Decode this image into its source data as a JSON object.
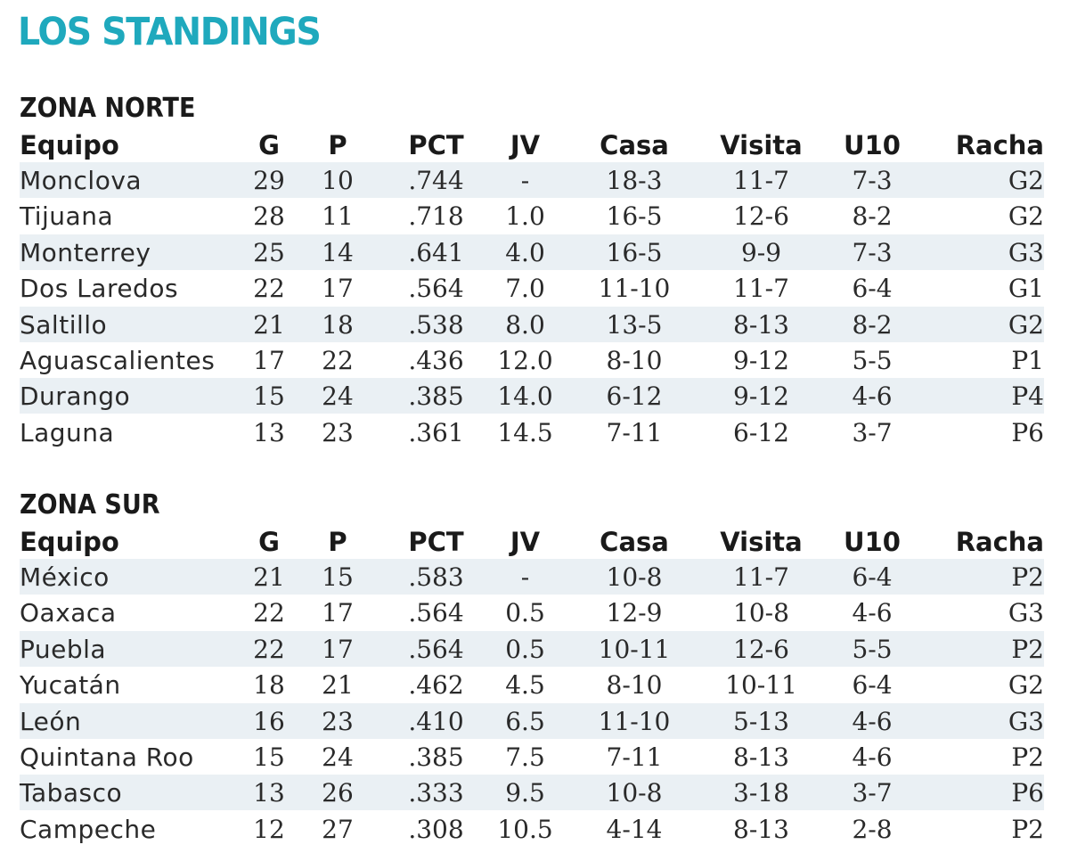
{
  "page_title": "LOS STANDINGS",
  "headers": {
    "team": "Equipo",
    "g": "G",
    "p": "P",
    "pct": "PCT",
    "jv": "JV",
    "casa": "Casa",
    "visita": "Visita",
    "u10": "U10",
    "racha": "Racha"
  },
  "norte": {
    "title": "ZONA NORTE",
    "rows": [
      {
        "team": "Monclova",
        "g": "29",
        "p": "10",
        "pct": ".744",
        "jv": "-",
        "casa": "18-3",
        "visita": "11-7",
        "u10": "7-3",
        "racha": "G2"
      },
      {
        "team": "Tijuana",
        "g": "28",
        "p": "11",
        "pct": ".718",
        "jv": "1.0",
        "casa": "16-5",
        "visita": "12-6",
        "u10": "8-2",
        "racha": "G2"
      },
      {
        "team": "Monterrey",
        "g": "25",
        "p": "14",
        "pct": ".641",
        "jv": "4.0",
        "casa": "16-5",
        "visita": "9-9",
        "u10": "7-3",
        "racha": "G3"
      },
      {
        "team": "Dos Laredos",
        "g": "22",
        "p": "17",
        "pct": ".564",
        "jv": "7.0",
        "casa": "11-10",
        "visita": "11-7",
        "u10": "6-4",
        "racha": "G1"
      },
      {
        "team": "Saltillo",
        "g": "21",
        "p": "18",
        "pct": ".538",
        "jv": "8.0",
        "casa": "13-5",
        "visita": "8-13",
        "u10": "8-2",
        "racha": "G2"
      },
      {
        "team": "Aguascalientes",
        "g": "17",
        "p": "22",
        "pct": ".436",
        "jv": "12.0",
        "casa": "8-10",
        "visita": "9-12",
        "u10": "5-5",
        "racha": "P1"
      },
      {
        "team": "Durango",
        "g": "15",
        "p": "24",
        "pct": ".385",
        "jv": "14.0",
        "casa": "6-12",
        "visita": "9-12",
        "u10": "4-6",
        "racha": "P4"
      },
      {
        "team": "Laguna",
        "g": "13",
        "p": "23",
        "pct": ".361",
        "jv": "14.5",
        "casa": "7-11",
        "visita": "6-12",
        "u10": "3-7",
        "racha": "P6"
      }
    ]
  },
  "sur": {
    "title": "ZONA SUR",
    "rows": [
      {
        "team": "México",
        "g": "21",
        "p": "15",
        "pct": ".583",
        "jv": "-",
        "casa": "10-8",
        "visita": "11-7",
        "u10": "6-4",
        "racha": "P2"
      },
      {
        "team": "Oaxaca",
        "g": "22",
        "p": "17",
        "pct": ".564",
        "jv": "0.5",
        "casa": "12-9",
        "visita": "10-8",
        "u10": "4-6",
        "racha": "G3"
      },
      {
        "team": "Puebla",
        "g": "22",
        "p": "17",
        "pct": ".564",
        "jv": "0.5",
        "casa": "10-11",
        "visita": "12-6",
        "u10": "5-5",
        "racha": "P2"
      },
      {
        "team": "Yucatán",
        "g": "18",
        "p": "21",
        "pct": ".462",
        "jv": "4.5",
        "casa": "8-10",
        "visita": "10-11",
        "u10": "6-4",
        "racha": "G2"
      },
      {
        "team": "León",
        "g": "16",
        "p": "23",
        "pct": ".410",
        "jv": "6.5",
        "casa": "11-10",
        "visita": "5-13",
        "u10": "4-6",
        "racha": "G3"
      },
      {
        "team": "Quintana Roo",
        "g": "15",
        "p": "24",
        "pct": ".385",
        "jv": "7.5",
        "casa": "7-11",
        "visita": "8-13",
        "u10": "4-6",
        "racha": "P2"
      },
      {
        "team": "Tabasco",
        "g": "13",
        "p": "26",
        "pct": ".333",
        "jv": "9.5",
        "casa": "10-8",
        "visita": "3-18",
        "u10": "3-7",
        "racha": "P6"
      },
      {
        "team": "Campeche",
        "g": "12",
        "p": "27",
        "pct": ".308",
        "jv": "10.5",
        "casa": "4-14",
        "visita": "8-13",
        "u10": "2-8",
        "racha": "P2"
      }
    ]
  },
  "colors": {
    "title": "#1fa9bd",
    "row_shade": "#eaf0f4",
    "text": "#2a2a2a"
  }
}
